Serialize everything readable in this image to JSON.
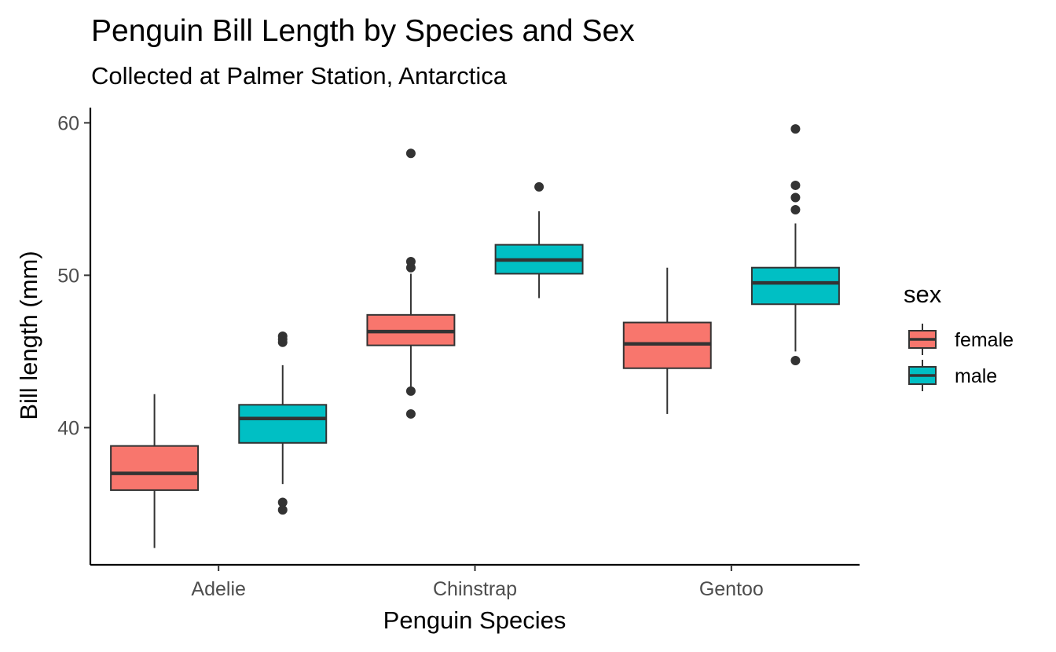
{
  "chart_data": {
    "type": "boxplot",
    "title": "Penguin Bill Length by Species and Sex",
    "subtitle": "Collected at Palmer Station, Antarctica",
    "xlabel": "Penguin Species",
    "ylabel": "Bill length (mm)",
    "categories": [
      "Adelie",
      "Chinstrap",
      "Gentoo"
    ],
    "ylim": [
      31.0,
      61.0
    ],
    "yticks": [
      40,
      50,
      60
    ],
    "grid": false,
    "legend": {
      "title": "sex",
      "placement": "right"
    },
    "series": [
      {
        "name": "female",
        "color": "#F8766D",
        "boxes": [
          {
            "category": "Adelie",
            "lower_whisker": 32.1,
            "q1": 35.9,
            "median": 37.0,
            "q3": 38.8,
            "upper_whisker": 42.2,
            "outliers": []
          },
          {
            "category": "Chinstrap",
            "lower_whisker": 42.5,
            "q1": 45.4,
            "median": 46.3,
            "q3": 47.4,
            "upper_whisker": 50.1,
            "outliers": [
              58.0,
              50.9,
              50.5,
              42.4,
              40.9
            ]
          },
          {
            "category": "Gentoo",
            "lower_whisker": 40.9,
            "q1": 43.9,
            "median": 45.5,
            "q3": 46.9,
            "upper_whisker": 50.5,
            "outliers": []
          }
        ]
      },
      {
        "name": "male",
        "color": "#00BFC4",
        "boxes": [
          {
            "category": "Adelie",
            "lower_whisker": 36.3,
            "q1": 39.0,
            "median": 40.6,
            "q3": 41.5,
            "upper_whisker": 44.1,
            "outliers": [
              46.0,
              45.8,
              45.6,
              35.1,
              34.6
            ]
          },
          {
            "category": "Chinstrap",
            "lower_whisker": 48.5,
            "q1": 50.1,
            "median": 51.0,
            "q3": 52.0,
            "upper_whisker": 54.2,
            "outliers": [
              55.8
            ]
          },
          {
            "category": "Gentoo",
            "lower_whisker": 45.0,
            "q1": 48.1,
            "median": 49.5,
            "q3": 50.5,
            "upper_whisker": 53.4,
            "outliers": [
              59.6,
              55.9,
              55.1,
              54.3,
              44.4
            ]
          }
        ]
      }
    ]
  }
}
